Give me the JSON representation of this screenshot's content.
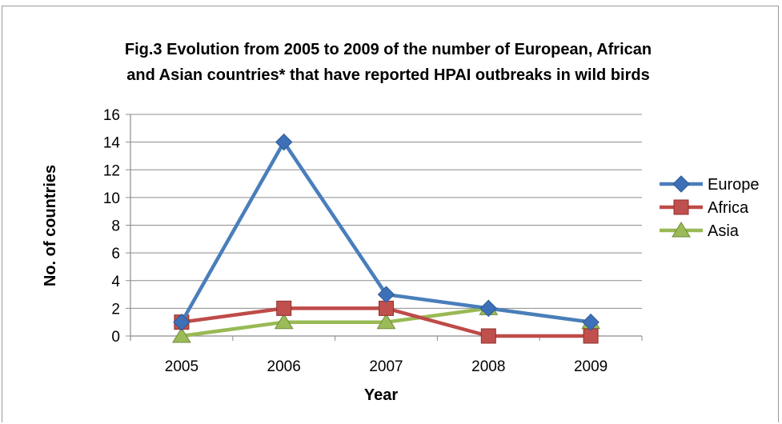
{
  "chart_data": {
    "type": "line",
    "title_line1": "Fig.3 Evolution from 2005 to 2009 of the number of European, African",
    "title_line2": "and Asian countries* that have reported HPAI outbreaks in wild birds",
    "xlabel": "Year",
    "ylabel": "No. of countries",
    "categories": [
      "2005",
      "2006",
      "2007",
      "2008",
      "2009"
    ],
    "ylim": [
      0,
      16
    ],
    "yticks": [
      "0",
      "2",
      "4",
      "6",
      "8",
      "10",
      "12",
      "14",
      "16"
    ],
    "grid": true,
    "legend_position": "right",
    "series": [
      {
        "name": "Europe",
        "values": [
          1,
          14,
          3,
          2,
          1
        ],
        "color": "#4a7ebb",
        "fill": "#3e70b8",
        "marker": "diamond"
      },
      {
        "name": "Africa",
        "values": [
          1,
          2,
          2,
          0,
          0
        ],
        "color": "#be4b48",
        "fill": "#c0504d",
        "marker": "square"
      },
      {
        "name": "Asia",
        "values": [
          0,
          1,
          1,
          2,
          1
        ],
        "color": "#98b954",
        "fill": "#9bbb59",
        "marker": "triangle"
      }
    ]
  }
}
